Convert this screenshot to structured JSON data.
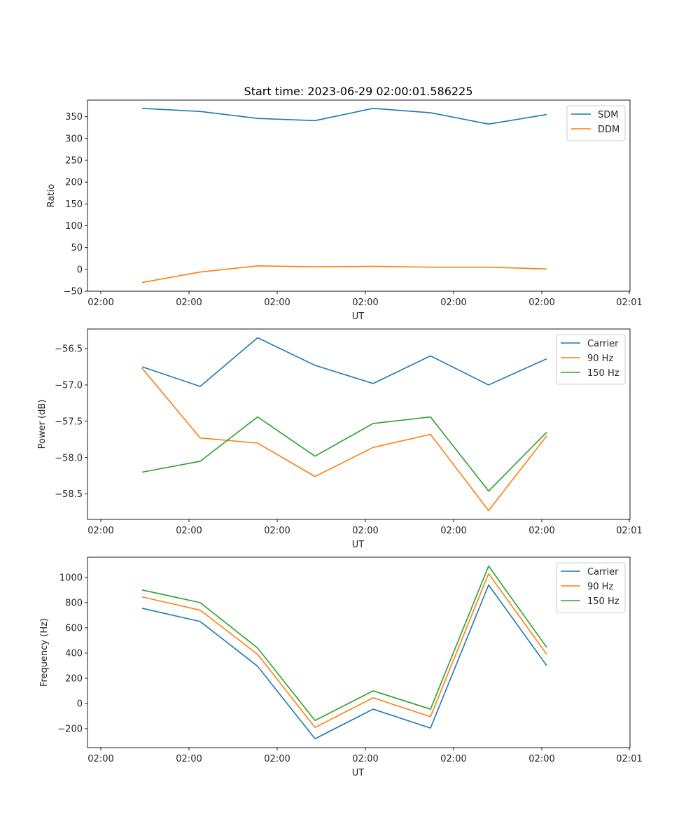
{
  "figure": {
    "title": "Start time: 2023-06-29 02:00:01.586225"
  },
  "chart_data": [
    {
      "type": "line",
      "title": "Start time: 2023-06-29 02:00:01.586225",
      "xlabel": "UT",
      "ylabel": "Ratio",
      "x_tick_labels": [
        "02:00",
        "02:00",
        "02:00",
        "02:00",
        "02:00",
        "02:00",
        "02:00",
        "02:01"
      ],
      "y_ticks": [
        -50,
        0,
        50,
        100,
        150,
        200,
        250,
        300,
        350
      ],
      "ylim": [
        -50,
        388
      ],
      "grid": false,
      "legend_position": "top-right",
      "series": [
        {
          "name": "SDM",
          "color": "#1f77b4",
          "values": [
            369,
            362,
            346,
            341,
            369,
            359,
            333,
            355
          ]
        },
        {
          "name": "DDM",
          "color": "#ff7f0e",
          "values": [
            -30,
            -6,
            8,
            6,
            7,
            5,
            5,
            1
          ]
        }
      ]
    },
    {
      "type": "line",
      "title": "",
      "xlabel": "UT",
      "ylabel": "Power (dB)",
      "x_tick_labels": [
        "02:00",
        "02:00",
        "02:00",
        "02:00",
        "02:00",
        "02:00",
        "02:00",
        "02:01"
      ],
      "y_ticks": [
        -58.5,
        -58.0,
        -57.5,
        -57.0,
        -56.5
      ],
      "ylim": [
        -58.85,
        -56.23
      ],
      "grid": false,
      "legend_position": "top-right",
      "series": [
        {
          "name": "Carrier",
          "color": "#1f77b4",
          "values": [
            -56.75,
            -57.02,
            -56.35,
            -56.73,
            -56.98,
            -56.6,
            -57.0,
            -56.64
          ]
        },
        {
          "name": "90 Hz",
          "color": "#ff7f0e",
          "values": [
            -56.77,
            -57.73,
            -57.8,
            -58.26,
            -57.86,
            -57.68,
            -58.73,
            -57.7
          ]
        },
        {
          "name": "150 Hz",
          "color": "#2ca02c",
          "values": [
            -58.2,
            -58.05,
            -57.44,
            -57.98,
            -57.53,
            -57.44,
            -58.46,
            -57.65
          ]
        }
      ]
    },
    {
      "type": "line",
      "title": "",
      "xlabel": "UT",
      "ylabel": "Frequency (Hz)",
      "x_tick_labels": [
        "02:00",
        "02:00",
        "02:00",
        "02:00",
        "02:00",
        "02:00",
        "02:00",
        "02:01"
      ],
      "y_ticks": [
        -200,
        0,
        200,
        400,
        600,
        800,
        1000
      ],
      "ylim": [
        -350,
        1160
      ],
      "grid": false,
      "legend_position": "top-right",
      "series": [
        {
          "name": "Carrier",
          "color": "#1f77b4",
          "values": [
            755,
            650,
            295,
            -280,
            -45,
            -195,
            940,
            300
          ]
        },
        {
          "name": "90 Hz",
          "color": "#ff7f0e",
          "values": [
            845,
            740,
            390,
            -190,
            45,
            -105,
            1030,
            390
          ]
        },
        {
          "name": "150 Hz",
          "color": "#2ca02c",
          "values": [
            900,
            800,
            440,
            -135,
            100,
            -45,
            1090,
            445
          ]
        }
      ]
    }
  ]
}
